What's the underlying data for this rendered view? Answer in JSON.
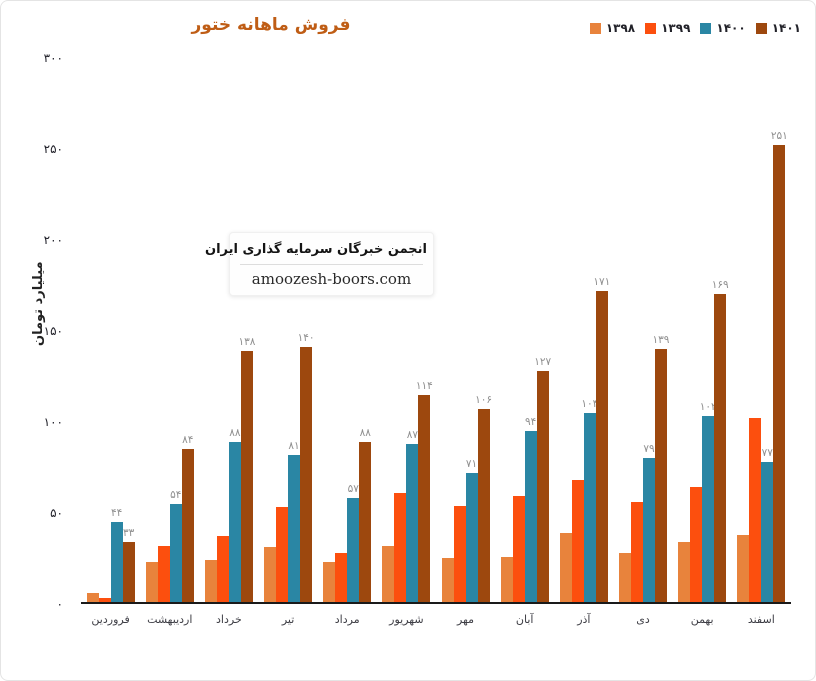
{
  "chart": {
    "title": "فروش ماهانه ختور",
    "y_axis_title": "میلیارد تومان",
    "y_ticks": [
      "۰",
      "۵۰",
      "۱۰۰",
      "۱۵۰",
      "۲۰۰",
      "۲۵۰",
      "۳۰۰"
    ],
    "watermark": {
      "line1": "انجمن خبرگان سرمایه گذاری ایران",
      "line2": "amoozesh-boors.com"
    },
    "colors": {
      "title": "#bf5d15",
      "axis_text": "#1f1f28",
      "data_label": "#8f8f8f"
    }
  },
  "chart_data": {
    "type": "bar",
    "title": "فروش ماهانه ختور",
    "xlabel": "",
    "ylabel": "میلیارد تومان",
    "ylim": [
      0,
      300
    ],
    "y_tick_values": [
      0,
      50,
      100,
      150,
      200,
      250,
      300
    ],
    "grid": false,
    "legend_position": "top-right",
    "categories": [
      "فروردین",
      "اردیبهشت",
      "خرداد",
      "تیر",
      "مرداد",
      "شهریور",
      "مهر",
      "آبان",
      "آذر",
      "دی",
      "بهمن",
      "اسفند"
    ],
    "series": [
      {
        "name": "۱۳۹۸",
        "color": "#e8833c",
        "values": [
          5,
          22,
          23,
          30,
          22,
          31,
          24,
          25,
          38,
          27,
          33,
          37
        ],
        "values_estimated": true
      },
      {
        "name": "۱۳۹۹",
        "color": "#fc4f0e",
        "values": [
          2,
          31,
          36,
          52,
          27,
          60,
          53,
          58,
          67,
          55,
          63,
          101
        ],
        "values_estimated": true
      },
      {
        "name": "۱۴۰۰",
        "color": "#2a86a4",
        "values": [
          44,
          54,
          88,
          81,
          57,
          87,
          71,
          94,
          104,
          79,
          102,
          77
        ],
        "labels": [
          "۴۴",
          "۵۴",
          "۸۸",
          "۸۱",
          "۵۷",
          "۸۷",
          "۷۱",
          "۹۴",
          "۱۰۴",
          "۷۹",
          "۱۰۲",
          "۷۷"
        ]
      },
      {
        "name": "۱۴۰۱",
        "color": "#9d480e",
        "values": [
          33,
          84,
          138,
          140,
          88,
          114,
          106,
          127,
          171,
          139,
          169,
          251
        ],
        "labels": [
          "۳۳",
          "۸۴",
          "۱۳۸",
          "۱۴۰",
          "۸۸",
          "۱۱۴",
          "۱۰۶",
          "۱۲۷",
          "۱۷۱",
          "۱۳۹",
          "۱۶۹",
          "۲۵۱"
        ]
      }
    ]
  }
}
